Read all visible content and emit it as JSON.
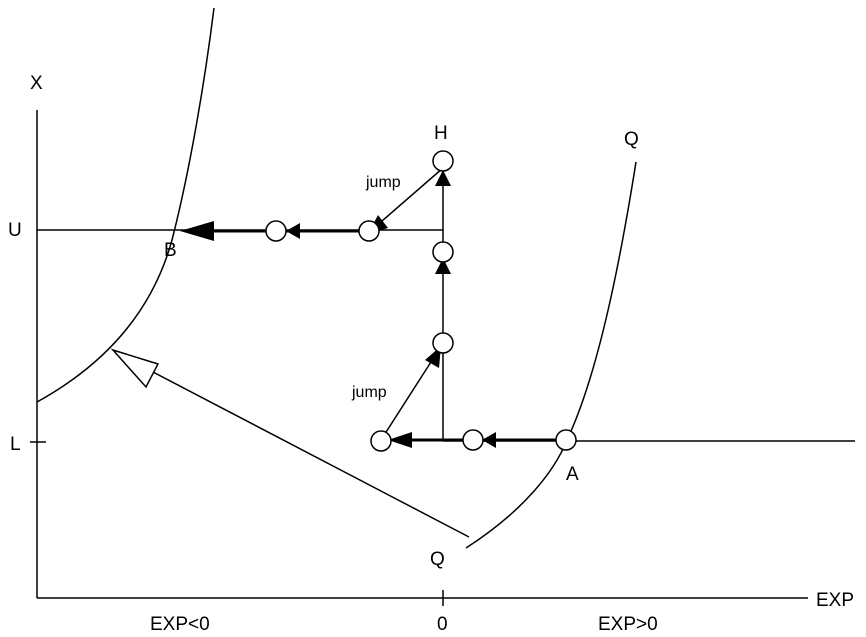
{
  "axes": {
    "y_label": "X",
    "x_label": "EXP",
    "y_ticks": [
      "U",
      "L"
    ],
    "x_ticks": [
      "EXP<0",
      "0",
      "EXP>0"
    ]
  },
  "curves": {
    "left_curve_label": "B",
    "right_curve_top_label": "Q",
    "right_curve_bottom_label": "Q"
  },
  "points": {
    "A": "A",
    "B": "B",
    "H": "H"
  },
  "annotations": {
    "jump_upper": "jump",
    "jump_lower": "jump"
  },
  "colors": {
    "ink": "#000000",
    "background": "#ffffff"
  }
}
